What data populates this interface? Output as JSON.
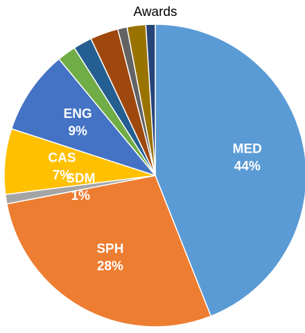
{
  "chart_data": {
    "type": "pie",
    "title": "Awards",
    "categories": [
      "MED",
      "SPH",
      "SDM",
      "CAS",
      "ENG",
      null,
      null,
      null,
      null,
      null,
      null
    ],
    "values": [
      44,
      28,
      1,
      7,
      9,
      2,
      2,
      3,
      1,
      2,
      1
    ],
    "value_labels": [
      "44%",
      "28%",
      "1%",
      "7%",
      "9%",
      null,
      null,
      null,
      null,
      null,
      null
    ],
    "colors": [
      "#5b9bd5",
      "#ed7d31",
      "#a5a5a5",
      "#ffc000",
      "#4472c4",
      "#70ad47",
      "#255e91",
      "#9e480e",
      "#636363",
      "#997300",
      "#264478"
    ]
  }
}
